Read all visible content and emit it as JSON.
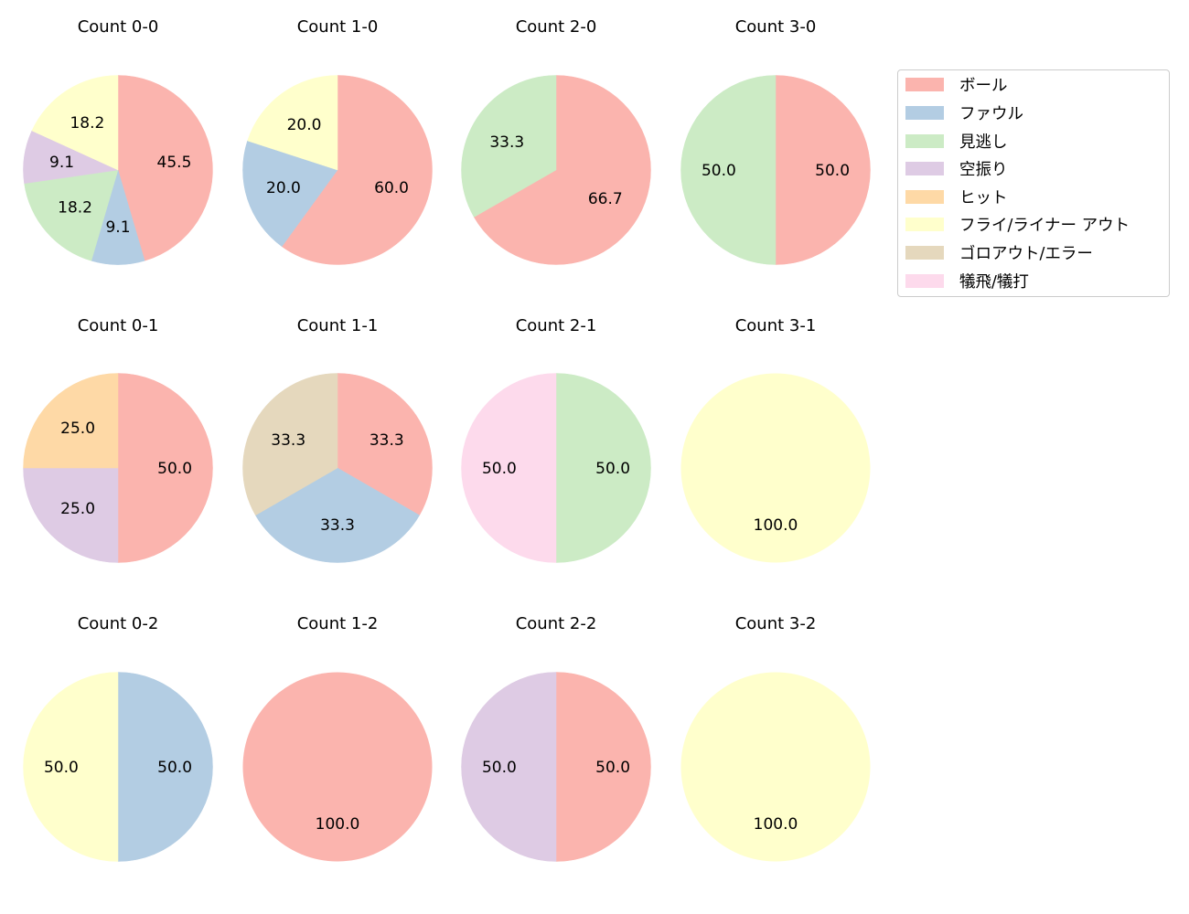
{
  "chart_data": {
    "type": "pie",
    "layout": {
      "rows": 3,
      "cols": 4,
      "legend_position": "upper right outside"
    },
    "categories": [
      "ボール",
      "ファウル",
      "見逃し",
      "空振り",
      "ヒット",
      "フライ/ライナー アウト",
      "ゴロアウト/エラー",
      "犠飛/犠打"
    ],
    "colors": [
      "#fbb4ae",
      "#b3cde3",
      "#ccebc5",
      "#decbe4",
      "#fed9a6",
      "#ffffcc",
      "#e5d8bd",
      "#fddaec"
    ],
    "charts": [
      {
        "title": "Count 0-0",
        "values": [
          45.5,
          9.1,
          18.2,
          9.1,
          0,
          18.2,
          0,
          0
        ]
      },
      {
        "title": "Count 1-0",
        "values": [
          60.0,
          20.0,
          0,
          0,
          0,
          20.0,
          0,
          0
        ]
      },
      {
        "title": "Count 2-0",
        "values": [
          66.7,
          0,
          33.3,
          0,
          0,
          0,
          0,
          0
        ]
      },
      {
        "title": "Count 3-0",
        "values": [
          50.0,
          0,
          50.0,
          0,
          0,
          0,
          0,
          0
        ]
      },
      {
        "title": "Count 0-1",
        "values": [
          50.0,
          0,
          0,
          25.0,
          25.0,
          0,
          0,
          0
        ]
      },
      {
        "title": "Count 1-1",
        "values": [
          33.3,
          33.3,
          0,
          0,
          0,
          0,
          33.3,
          0
        ]
      },
      {
        "title": "Count 2-1",
        "values": [
          0,
          0,
          50.0,
          0,
          0,
          0,
          0,
          50.0
        ]
      },
      {
        "title": "Count 3-1",
        "values": [
          0,
          0,
          0,
          0,
          0,
          100.0,
          0,
          0
        ]
      },
      {
        "title": "Count 0-2",
        "values": [
          0,
          50.0,
          0,
          0,
          0,
          50.0,
          0,
          0
        ]
      },
      {
        "title": "Count 1-2",
        "values": [
          100.0,
          0,
          0,
          0,
          0,
          0,
          0,
          0
        ]
      },
      {
        "title": "Count 2-2",
        "values": [
          50.0,
          0,
          0,
          50.0,
          0,
          0,
          0,
          0
        ]
      },
      {
        "title": "Count 3-2",
        "values": [
          0,
          0,
          0,
          0,
          0,
          100.0,
          0,
          0
        ]
      }
    ]
  },
  "legend": {
    "items": [
      {
        "label": "ボール",
        "color": "#fbb4ae"
      },
      {
        "label": "ファウル",
        "color": "#b3cde3"
      },
      {
        "label": "見逃し",
        "color": "#ccebc5"
      },
      {
        "label": "空振り",
        "color": "#decbe4"
      },
      {
        "label": "ヒット",
        "color": "#fed9a6"
      },
      {
        "label": "フライ/ライナー アウト",
        "color": "#ffffcc"
      },
      {
        "label": "ゴロアウト/エラー",
        "color": "#e5d8bd"
      },
      {
        "label": "犠飛/犠打",
        "color": "#fddaec"
      }
    ]
  }
}
